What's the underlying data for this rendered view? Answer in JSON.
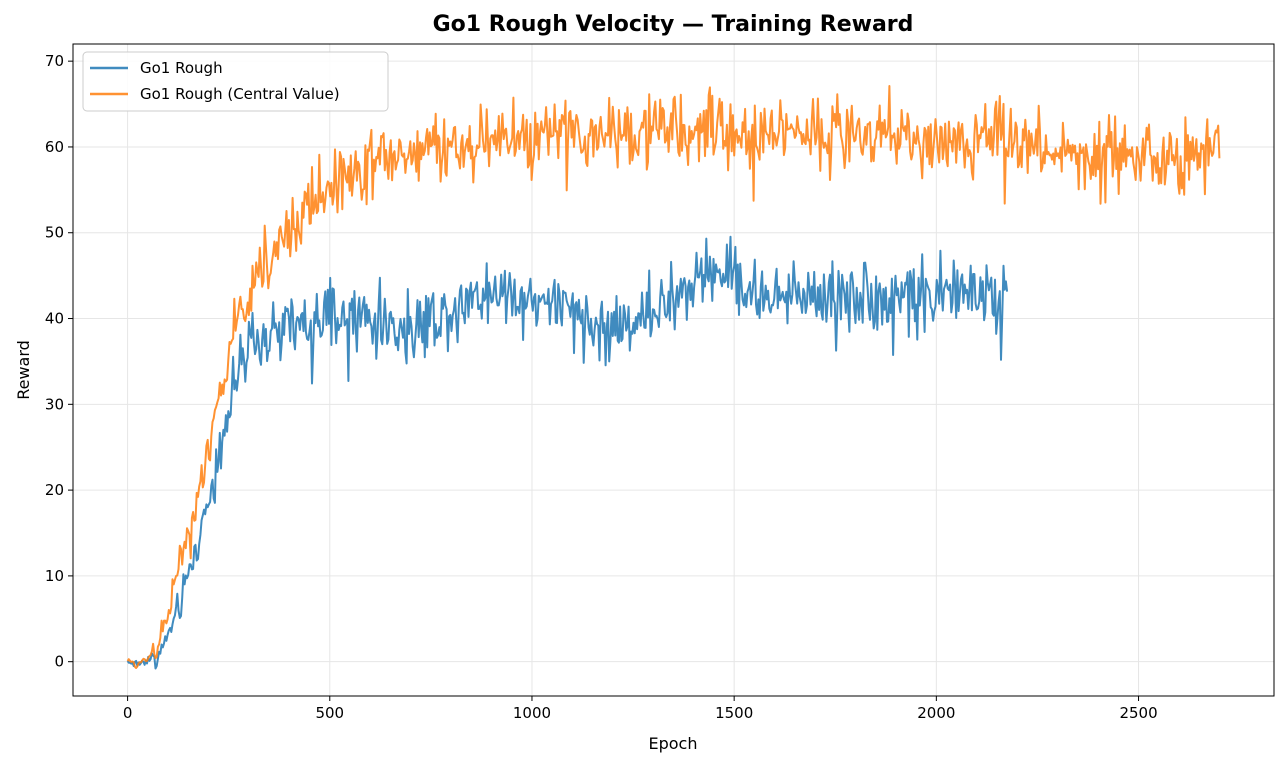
{
  "chart_data": {
    "type": "line",
    "title": "Go1 Rough Velocity — Training Reward",
    "xlabel": "Epoch",
    "ylabel": "Reward",
    "xlim": [
      -135,
      2835
    ],
    "ylim": [
      -4,
      72
    ],
    "xticks": [
      0,
      500,
      1000,
      1500,
      2000,
      2500
    ],
    "yticks": [
      0,
      10,
      20,
      30,
      40,
      50,
      60,
      70
    ],
    "grid": true,
    "legend_position": "top-left",
    "series": [
      {
        "name": "Go1 Rough",
        "color": "#1f77b4",
        "points": [
          [
            0,
            0
          ],
          [
            25,
            -0.3
          ],
          [
            50,
            0.3
          ],
          [
            75,
            0.5
          ],
          [
            100,
            3
          ],
          [
            125,
            6
          ],
          [
            150,
            10
          ],
          [
            175,
            14
          ],
          [
            200,
            19
          ],
          [
            225,
            24
          ],
          [
            250,
            30
          ],
          [
            275,
            34
          ],
          [
            300,
            36
          ],
          [
            325,
            37
          ],
          [
            350,
            38
          ],
          [
            400,
            39
          ],
          [
            450,
            39
          ],
          [
            500,
            40
          ],
          [
            550,
            40
          ],
          [
            600,
            40
          ],
          [
            650,
            39
          ],
          [
            700,
            39
          ],
          [
            750,
            40
          ],
          [
            800,
            41
          ],
          [
            850,
            43
          ],
          [
            900,
            43
          ],
          [
            950,
            43
          ],
          [
            1000,
            42
          ],
          [
            1050,
            42
          ],
          [
            1100,
            40
          ],
          [
            1150,
            39
          ],
          [
            1200,
            39
          ],
          [
            1250,
            40
          ],
          [
            1300,
            41
          ],
          [
            1350,
            42
          ],
          [
            1400,
            44
          ],
          [
            1450,
            46
          ],
          [
            1500,
            45
          ],
          [
            1550,
            43
          ],
          [
            1600,
            42
          ],
          [
            1650,
            43
          ],
          [
            1700,
            43
          ],
          [
            1750,
            43
          ],
          [
            1800,
            43
          ],
          [
            1850,
            42
          ],
          [
            1900,
            43
          ],
          [
            1950,
            43
          ],
          [
            2000,
            43
          ],
          [
            2050,
            43
          ],
          [
            2100,
            43
          ],
          [
            2150,
            43
          ],
          [
            2175,
            42
          ]
        ]
      },
      {
        "name": "Go1 Rough (Central Value)",
        "color": "#ff7f0e",
        "points": [
          [
            0,
            0
          ],
          [
            25,
            -0.3
          ],
          [
            50,
            0.5
          ],
          [
            75,
            2
          ],
          [
            100,
            6
          ],
          [
            125,
            11
          ],
          [
            150,
            15
          ],
          [
            175,
            19
          ],
          [
            200,
            24
          ],
          [
            225,
            30
          ],
          [
            250,
            36
          ],
          [
            275,
            40
          ],
          [
            300,
            43
          ],
          [
            325,
            46
          ],
          [
            350,
            47
          ],
          [
            400,
            50
          ],
          [
            450,
            53
          ],
          [
            500,
            56
          ],
          [
            550,
            57
          ],
          [
            600,
            58
          ],
          [
            650,
            59
          ],
          [
            700,
            59
          ],
          [
            750,
            60
          ],
          [
            800,
            60
          ],
          [
            850,
            60
          ],
          [
            900,
            61
          ],
          [
            950,
            61
          ],
          [
            1000,
            61
          ],
          [
            1050,
            62
          ],
          [
            1100,
            61
          ],
          [
            1150,
            61
          ],
          [
            1200,
            62
          ],
          [
            1250,
            62
          ],
          [
            1300,
            62
          ],
          [
            1350,
            62
          ],
          [
            1400,
            62
          ],
          [
            1450,
            62
          ],
          [
            1500,
            61
          ],
          [
            1550,
            61
          ],
          [
            1600,
            62
          ],
          [
            1650,
            62
          ],
          [
            1700,
            62
          ],
          [
            1750,
            62
          ],
          [
            1800,
            62
          ],
          [
            1850,
            61
          ],
          [
            1900,
            62
          ],
          [
            1950,
            61
          ],
          [
            2000,
            60
          ],
          [
            2050,
            60
          ],
          [
            2100,
            61
          ],
          [
            2150,
            62
          ],
          [
            2200,
            61
          ],
          [
            2250,
            60
          ],
          [
            2300,
            59
          ],
          [
            2350,
            59
          ],
          [
            2400,
            59
          ],
          [
            2450,
            60
          ],
          [
            2500,
            59
          ],
          [
            2550,
            58
          ],
          [
            2600,
            58
          ],
          [
            2650,
            59
          ],
          [
            2700,
            60
          ]
        ]
      }
    ]
  }
}
